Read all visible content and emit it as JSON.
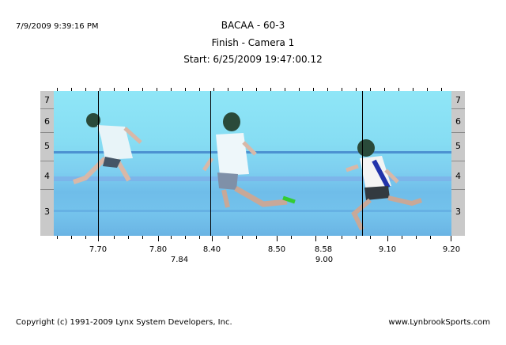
{
  "header": {
    "timestamp": "7/9/2009 9:39:16 PM",
    "title": "BACAA - 60-3",
    "subtitle": "Finish - Camera 1",
    "start": "Start: 6/25/2009 19:47:00.12"
  },
  "lanes": [
    "7",
    "6",
    "5",
    "4",
    "3"
  ],
  "time_labels_top": [
    "7.70",
    "7.80",
    "8.40",
    "8.50",
    "8.58",
    "9.10",
    "9.20"
  ],
  "time_labels_bottom": [
    "7.84",
    "9.00"
  ],
  "footer": {
    "copyright": "Copyright (c) 1991-2009 Lynx System Developers, Inc.",
    "site": "www.LynbrookSports.com"
  },
  "colors": {
    "photo_bg": "#86ddf3",
    "lane_bar": "#c9c9c9"
  }
}
